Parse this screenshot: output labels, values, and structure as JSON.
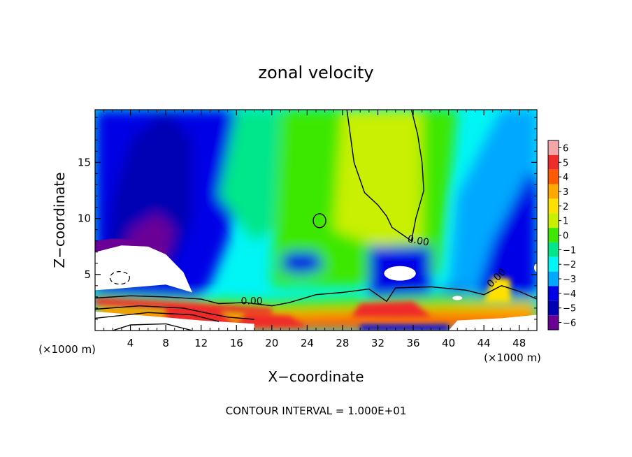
{
  "chart_data": {
    "type": "heatmap",
    "title": "zonal velocity",
    "xlabel": "X−coordinate",
    "ylabel": "Z−coordinate",
    "x_unit_left": "(×1000 m)",
    "x_unit_right": "(×1000 m)",
    "footer": "CONTOUR INTERVAL = 1.000E+01",
    "xlim": [
      0,
      50
    ],
    "ylim": [
      0,
      19.7
    ],
    "x_ticks": [
      4,
      8,
      12,
      16,
      20,
      24,
      28,
      32,
      36,
      40,
      44,
      48
    ],
    "y_ticks": [
      5,
      10,
      15
    ],
    "contour_labels": [
      "0.00",
      "0.00",
      "0.00"
    ],
    "colorbar": {
      "levels": [
        "6",
        "5",
        "4",
        "3",
        "2",
        "1",
        "0",
        "−1",
        "−2",
        "−3",
        "−4",
        "−5",
        "−6"
      ],
      "colors": [
        "#f4a6a6",
        "#ef2a2a",
        "#ff5a00",
        "#ffa800",
        "#ffe100",
        "#c8f000",
        "#3ee800",
        "#00e68a",
        "#00f5f5",
        "#00a8ff",
        "#0000e6",
        "#0000b4",
        "#6a0096"
      ]
    }
  }
}
